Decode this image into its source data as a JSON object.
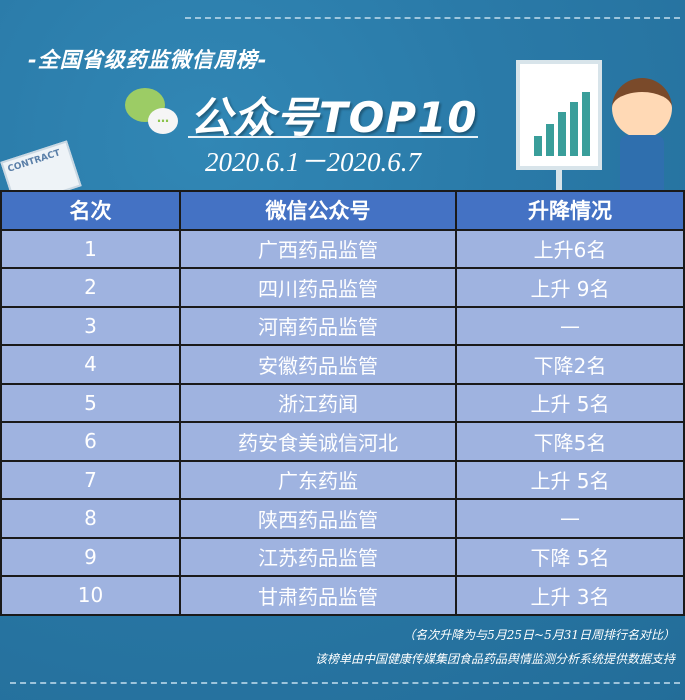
{
  "header": {
    "subtitle": "-全国省级药监微信周榜-",
    "title": "公众号TOP10",
    "date_range": "2020.6.1－2020.6.7",
    "contract_label": "CONTRACT"
  },
  "table": {
    "columns": [
      "名次",
      "微信公众号",
      "升降情况"
    ],
    "rows": [
      [
        "1",
        "广西药品监管",
        "上升6名"
      ],
      [
        "2",
        "四川药品监管",
        "上升 9名"
      ],
      [
        "3",
        "河南药品监管",
        "—"
      ],
      [
        "4",
        "安徽药品监管",
        "下降2名"
      ],
      [
        "5",
        "浙江药闻",
        "上升 5名"
      ],
      [
        "6",
        "药安食美诚信河北",
        "下降5名"
      ],
      [
        "7",
        "广东药监",
        "上升 5名"
      ],
      [
        "8",
        "陕西药品监管",
        "—"
      ],
      [
        "9",
        "江苏药品监管",
        "下降 5名"
      ],
      [
        "10",
        "甘肃药品监管",
        "上升 3名"
      ]
    ]
  },
  "footer": {
    "note1": "（名次升降为与5月25日~5月31日周排行名对比）",
    "note2": "该榜单由中国健康传媒集团食品药品舆情监测分析系统提供数据支持"
  },
  "colors": {
    "background": "#2a7aa8",
    "header": "#4472c4",
    "row": "#9fb3e0"
  }
}
